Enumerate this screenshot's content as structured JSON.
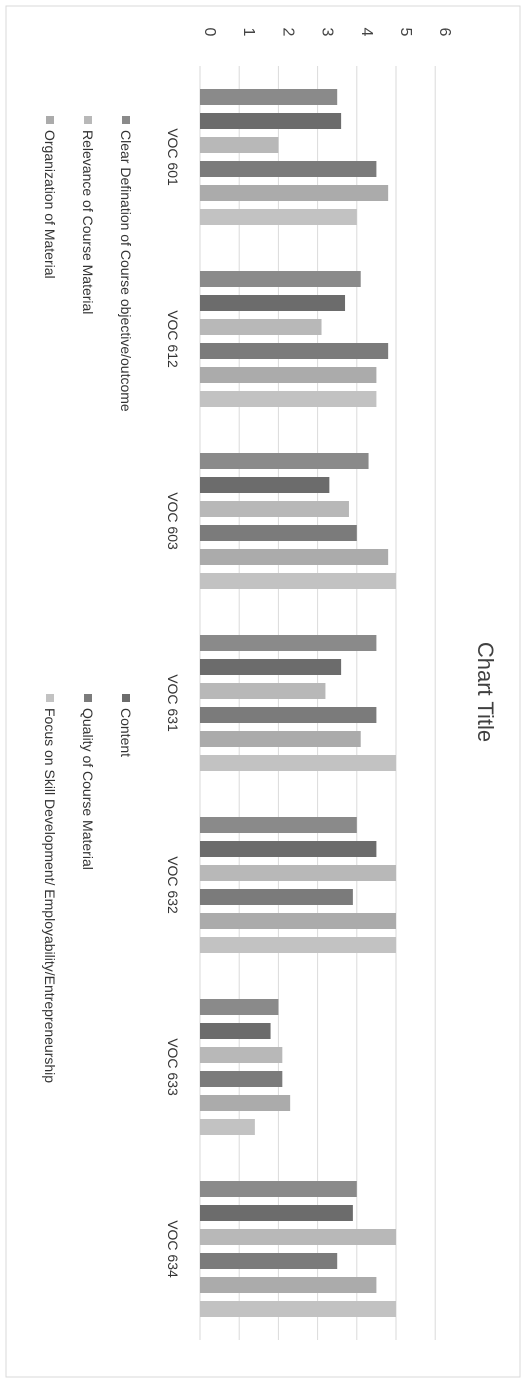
{
  "chart_data": {
    "type": "bar",
    "title": "Chart Title",
    "orientation": "rotated 90° clockwise (page printed sideways)",
    "categories": [
      "VOC 601",
      "VOC 612",
      "VOC 603",
      "VOC 631",
      "VOC 632",
      "VOC 633",
      "VOC 634"
    ],
    "ylim": [
      0,
      6
    ],
    "yticks": [
      "0",
      "1",
      "2",
      "3",
      "4",
      "5",
      "6"
    ],
    "grid": true,
    "legend_position": "bottom",
    "series": [
      {
        "name": "Clear Defination of Course objective/outcome",
        "values": [
          3.5,
          4.1,
          4.3,
          4.5,
          4.0,
          2.0,
          4.0
        ]
      },
      {
        "name": "Content",
        "values": [
          3.6,
          3.7,
          3.3,
          3.6,
          4.5,
          1.8,
          3.9
        ]
      },
      {
        "name": "Relevance of Course Material",
        "values": [
          2.0,
          3.1,
          3.8,
          3.2,
          5.0,
          2.1,
          5.0
        ]
      },
      {
        "name": "Quality of Course Material",
        "values": [
          4.5,
          4.8,
          4.0,
          4.5,
          3.9,
          2.1,
          3.5
        ]
      },
      {
        "name": "Organization of Material",
        "values": [
          4.8,
          4.5,
          4.8,
          4.1,
          5.0,
          2.3,
          4.5
        ]
      },
      {
        "name": "Focus on Skill Development/ Employability/Entrepreneurship",
        "values": [
          4.0,
          4.5,
          5.0,
          5.0,
          5.0,
          1.4,
          5.0
        ]
      }
    ],
    "colors": [
      "#8a8a8a",
      "#6c6c6c",
      "#b8b8b8",
      "#7b7b7b",
      "#ababab",
      "#c2c2c2"
    ]
  }
}
